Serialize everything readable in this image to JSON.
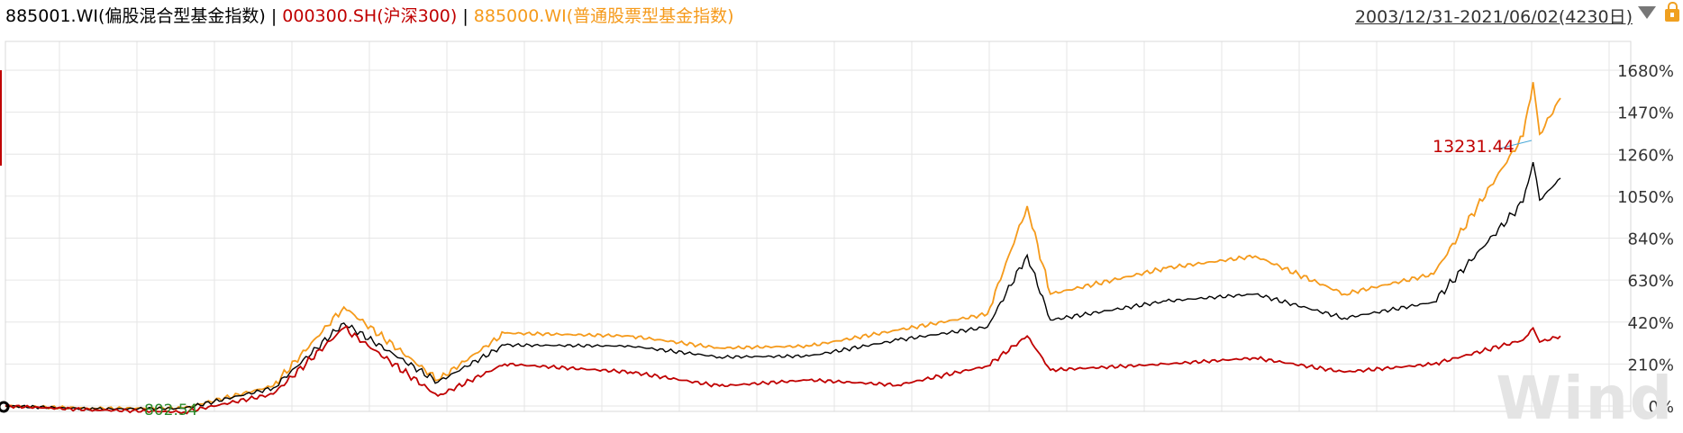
{
  "header": {
    "legend": [
      {
        "label": "885001.WI(偏股混合型基金指数)",
        "color": "#000000"
      },
      {
        "label": "000300.SH(沪深300)",
        "color": "#c00000"
      },
      {
        "label": "885000.WI(普通股票型基金指数)",
        "color": "#f59a1b"
      }
    ],
    "separator": " | ",
    "date_range": "2003/12/31-2021/06/02(4230日)"
  },
  "annotations": {
    "max_label": "13231.44",
    "min_label": "802.54"
  },
  "watermark": "Wind",
  "chart_data": {
    "type": "line",
    "x": [
      "2003-12-31",
      "2004-12-31",
      "2005-12-31",
      "2006-12-31",
      "2007-10-16",
      "2008-11-04",
      "2009-08-04",
      "2010-12-31",
      "2011-12-31",
      "2012-12-31",
      "2013-12-31",
      "2014-12-31",
      "2015-06-12",
      "2015-09-15",
      "2016-12-31",
      "2017-12-31",
      "2018-12-31",
      "2019-12-31",
      "2020-12-31",
      "2021-02-10",
      "2021-03-09",
      "2021-06-02"
    ],
    "ylim": [
      0,
      1700
    ],
    "yticks": [
      "0%",
      "210%",
      "420%",
      "630%",
      "840%",
      "1050%",
      "1260%",
      "1470%",
      "1680%"
    ],
    "ytick_values": [
      0,
      210,
      420,
      630,
      840,
      1050,
      1260,
      1470,
      1680
    ],
    "grid": true,
    "series": [
      {
        "name": "885001.WI(偏股混合型基金指数)",
        "color": "#000000",
        "values": [
          0,
          -15,
          -12,
          90,
          415,
          120,
          305,
          300,
          245,
          250,
          330,
          395,
          755,
          430,
          525,
          560,
          440,
          520,
          1020,
          1220,
          1030,
          1140
        ]
      },
      {
        "name": "000300.SH(沪深300)",
        "color": "#c00000",
        "values": [
          0,
          -20,
          -30,
          60,
          390,
          50,
          210,
          170,
          100,
          130,
          105,
          200,
          350,
          180,
          210,
          240,
          170,
          210,
          330,
          390,
          320,
          350
        ]
      },
      {
        "name": "885000.WI(普通股票型基金指数)",
        "color": "#f59a1b",
        "values": [
          0,
          -12,
          -10,
          100,
          495,
          130,
          365,
          350,
          290,
          300,
          380,
          460,
          1000,
          560,
          690,
          750,
          560,
          660,
          1350,
          1620,
          1360,
          1540
        ]
      }
    ]
  }
}
